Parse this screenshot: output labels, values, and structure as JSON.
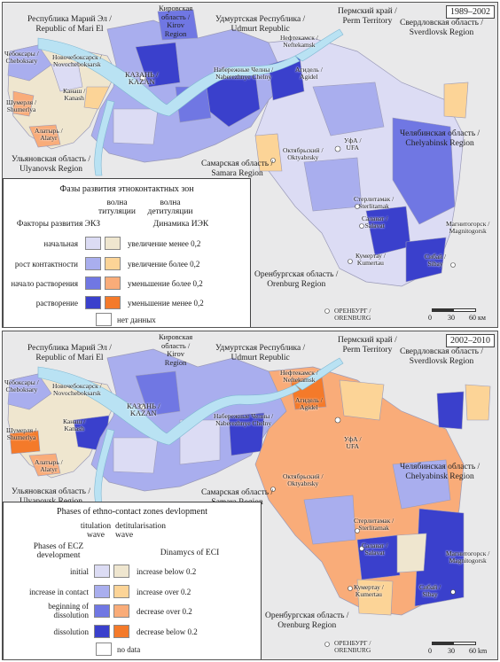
{
  "top": {
    "period": "1989–2002",
    "legend": {
      "title": "Фазы развития этноконтактных зон",
      "col1_header": "волна\nтитуляции",
      "col2_header": "волна\nдетитуляции",
      "factors_header": "Факторы развития ЭКЗ",
      "dynamics_header": "Динамика ИЭК",
      "factors": [
        "начальная",
        "рост контактности",
        "начало растворения",
        "растворение"
      ],
      "dynamics": [
        "увеличение менее 0,2",
        "увеличение более 0,2",
        "уменьшение более 0,2",
        "уменьшение менее 0,2"
      ],
      "no_data": "нет данных"
    },
    "scale": {
      "zero": "0",
      "mid": "30",
      "end": "60 км"
    }
  },
  "bottom": {
    "period": "2002–2010",
    "legend": {
      "title": "Phases of ethno-contact zones devlopment",
      "col1_header": "titulation\nwave",
      "col2_header": "detitularisation\nwave",
      "factors_header": "Phases of ECZ\ndevelopment",
      "dynamics_header": "Dinamycs of ECI",
      "factors": [
        "initial",
        "increase in contact",
        "beginning of\ndissolution",
        "dissolution"
      ],
      "dynamics": [
        "increase below 0.2",
        "increase over 0.2",
        "decrease over 0.2",
        "decrease below 0.2"
      ],
      "no_data": "no data"
    },
    "scale": {
      "zero": "0",
      "mid": "30",
      "end": "60 km"
    }
  },
  "labels": {
    "mari_el": "Республика Марий Эл /\nRepublic of Mari El",
    "kirov": "Кировская\nобласть /\nKirov\nRegion",
    "udmurt": "Удмуртская Республика /\nUdmurt Republic",
    "perm": "Пермский край /\nPerm Territory",
    "sverdlovsk": "Свердловская область /\nSverdlovsk Region",
    "chelyabinsk": "Челябинская область /\nChelyabinsk Region",
    "ulyanovsk": "Ульяновская область /\nUlyanovsk Region",
    "samara": "Самарская область /\nSamara Region",
    "orenburg": "Оренбургская область /\nOrenburg Region",
    "cheboksary": "Чебоксары /\nCheboksary",
    "novocheboksarsk": "Новочебоксарск /\nNovocheboksarsk",
    "kazan": "КАЗАНЬ /\nKAZAN",
    "kanash": "Канаш /\nKanash",
    "shumerlya": "Шумерля /\nShumerlya",
    "alatyr": "Алатырь /\nAlatyr",
    "chelny": "Набережные Челны /\nNaberezhnye Chelny",
    "neftekamsk": "Нефтекамск /\nNeftekamsk",
    "agidel": "Агидель /\nAgidel",
    "oktyabrsky": "Октябрьский /\nOktyabrsky",
    "ufa": "УфА /\nUFA",
    "sterlitamak": "Стерлитамак /\nSterlitamak",
    "salavat": "Салават /\nSalavat",
    "kumertau": "Кумертау /\nKumertau",
    "sibay": "Сибай /\nSibay",
    "magnitogorsk": "Магнитогорск /\nMagnitogorsk",
    "orenburg_city": "ОРЕНБУРГ /\nORENBURG"
  },
  "colors": {
    "initial": "#dcdcf4",
    "increase_contact": "#a9aeee",
    "begin_dissolution": "#7077e3",
    "dissolution": "#3a40cc",
    "inc_below": "#efe6cf",
    "inc_over": "#fcd497",
    "dec_over": "#f9ac79",
    "dec_below": "#f47a2a",
    "no_data": "#ffffff",
    "water": "#b9e2f3",
    "background": "#e9e9ea"
  }
}
